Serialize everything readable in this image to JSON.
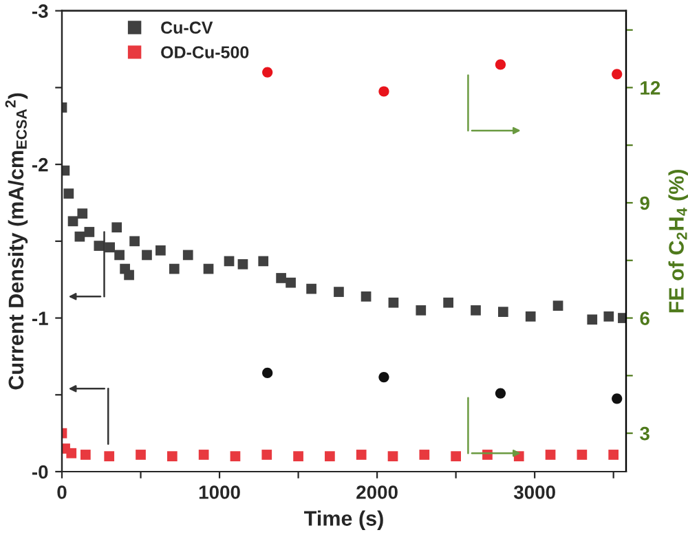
{
  "chart_data": {
    "type": "scatter",
    "xlabel": "Time (s)",
    "ylabel": "Current Density (mA/cm$_{ECSA}$$^{2}$)",
    "y2label": "FE of C$_{2}$H$_{4}$ (%)",
    "xlim": [
      0,
      3580
    ],
    "xticks": [
      0,
      {
        "value": 500,
        "label": null
      },
      1000,
      {
        "value": 1500,
        "label": null
      },
      2000,
      {
        "value": 2500,
        "label": null
      },
      3000,
      {
        "value": 3500,
        "label": null
      }
    ],
    "ylim": [
      0,
      -3
    ],
    "yticks": [
      {
        "value": 0,
        "label": "-0"
      },
      {
        "value": -0.5,
        "label": null
      },
      -1,
      {
        "value": -1.5,
        "label": null
      },
      -2,
      {
        "value": -2.5,
        "label": null
      },
      -3
    ],
    "y2lim": [
      2,
      14
    ],
    "y2ticks": [
      3,
      {
        "value": 4.5,
        "label": null
      },
      6,
      {
        "value": 7.5,
        "label": null
      },
      9,
      {
        "value": 10.5,
        "label": null
      },
      12,
      {
        "value": 13.5,
        "label": null
      }
    ],
    "legend": "top left",
    "grid": false,
    "series": [
      {
        "name": "Cu-CV",
        "color": "#404040",
        "marker": "square",
        "x": [
          0,
          17,
          43,
          70,
          113,
          130,
          174,
          235,
          304,
          348,
          365,
          400,
          426,
          461,
          539,
          626,
          713,
          800,
          930,
          1061,
          1148,
          1278,
          1391,
          1452,
          1583,
          1757,
          1930,
          2104,
          2278,
          2452,
          2626,
          2800,
          2974,
          3148,
          3365,
          3470,
          3560
        ],
        "values": [
          -2.37,
          -1.96,
          -1.81,
          -1.63,
          -1.53,
          -1.68,
          -1.56,
          -1.47,
          -1.46,
          -1.59,
          -1.41,
          -1.32,
          -1.28,
          -1.5,
          -1.41,
          -1.44,
          -1.32,
          -1.41,
          -1.32,
          -1.37,
          -1.35,
          -1.37,
          -1.26,
          -1.23,
          -1.19,
          -1.17,
          -1.14,
          -1.1,
          -1.05,
          -1.1,
          -1.05,
          -1.04,
          -1.01,
          -1.08,
          -0.99,
          -1.01,
          -1.0
        ]
      },
      {
        "name": "OD-Cu-500",
        "color": "#e8393f",
        "marker": "square",
        "x": [
          0,
          20,
          60,
          150,
          300,
          500,
          700,
          900,
          1100,
          1300,
          1500,
          1700,
          1900,
          2100,
          2300,
          2500,
          2700,
          2900,
          3100,
          3300,
          3500
        ],
        "values": [
          -0.25,
          -0.15,
          -0.12,
          -0.11,
          -0.1,
          -0.11,
          -0.1,
          -0.11,
          -0.1,
          -0.11,
          -0.1,
          -0.1,
          -0.11,
          -0.1,
          -0.11,
          -0.1,
          -0.11,
          -0.1,
          -0.11,
          -0.11,
          -0.11
        ]
      },
      {
        "color": "#e8141c",
        "marker": "circle",
        "axis": "y2",
        "x": [
          1304,
          2043,
          2783,
          3522
        ],
        "values": [
          12.4,
          11.9,
          12.6,
          12.35
        ]
      },
      {
        "color": "#111111",
        "marker": "circle",
        "axis": "y2",
        "x": [
          1304,
          2043,
          2783,
          3522
        ],
        "values": [
          4.57,
          4.46,
          4.04,
          3.9
        ]
      }
    ]
  }
}
